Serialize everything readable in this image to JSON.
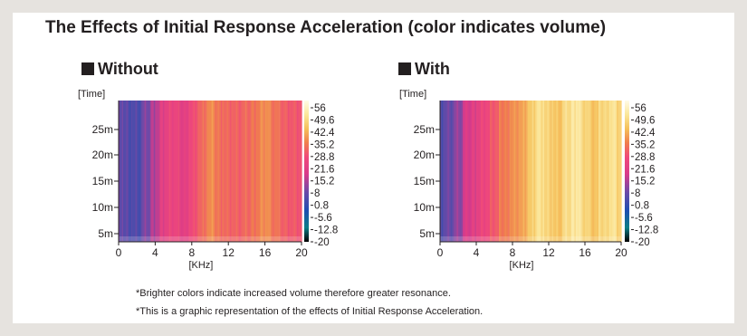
{
  "title": "The Effects of Initial Response Acceleration (color indicates volume)",
  "notes": [
    "*Brighter colors indicate increased volume therefore greater resonance.",
    "*This is a graphic representation of the effects of Initial Response Acceleration."
  ],
  "colors": {
    "page_bg": "#e6e3df",
    "panel_bg": "#ffffff",
    "text": "#231f20",
    "colormap": [
      "#000000",
      "#0b7d86",
      "#1e4fb0",
      "#6b4aa8",
      "#d93b8a",
      "#f0497a",
      "#f07e4e",
      "#f5c05a",
      "#fbe79a",
      "#fffbe8"
    ]
  },
  "chart_data": [
    {
      "type": "heatmap",
      "title": "Without",
      "ylabel": "[Time]",
      "xlabel": "[KHz]",
      "x_ticks": [
        0,
        4,
        8,
        12,
        16,
        20
      ],
      "y_ticks": [
        "5m",
        "10m",
        "15m",
        "20m",
        "25m"
      ],
      "xlim": [
        0,
        20
      ],
      "colorbar_labels": [
        "56",
        "49.6",
        "42.4",
        "35.2",
        "28.8",
        "21.6",
        "15.2",
        "8",
        "0.8",
        "-5.6",
        "-12.8",
        "-20"
      ],
      "freq_profile": [
        {
          "khz": 0,
          "volume": 6
        },
        {
          "khz": 1,
          "volume": 3
        },
        {
          "khz": 2,
          "volume": 2
        },
        {
          "khz": 3,
          "volume": 6
        },
        {
          "khz": 4,
          "volume": 12
        },
        {
          "khz": 5,
          "volume": 18
        },
        {
          "khz": 6,
          "volume": 20
        },
        {
          "khz": 7,
          "volume": 17
        },
        {
          "khz": 8,
          "volume": 22
        },
        {
          "khz": 9,
          "volume": 27
        },
        {
          "khz": 10,
          "volume": 32
        },
        {
          "khz": 11,
          "volume": 29
        },
        {
          "khz": 12,
          "volume": 27
        },
        {
          "khz": 13,
          "volume": 26
        },
        {
          "khz": 14,
          "volume": 27
        },
        {
          "khz": 15,
          "volume": 30
        },
        {
          "khz": 16,
          "volume": 33
        },
        {
          "khz": 17,
          "volume": 29
        },
        {
          "khz": 18,
          "volume": 26
        },
        {
          "khz": 19,
          "volume": 25
        },
        {
          "khz": 20,
          "volume": 24
        }
      ]
    },
    {
      "type": "heatmap",
      "title": "With",
      "ylabel": "[Time]",
      "xlabel": "[KHz]",
      "x_ticks": [
        0,
        4,
        8,
        12,
        16,
        20
      ],
      "y_ticks": [
        "5m",
        "10m",
        "15m",
        "20m",
        "25m"
      ],
      "xlim": [
        0,
        20
      ],
      "colorbar_labels": [
        "56",
        "49.6",
        "42.4",
        "35.2",
        "28.8",
        "21.6",
        "15.2",
        "8",
        "0.8",
        "-5.6",
        "-12.8",
        "-20"
      ],
      "freq_profile": [
        {
          "khz": 0,
          "volume": 4
        },
        {
          "khz": 1,
          "volume": 5
        },
        {
          "khz": 2,
          "volume": 8
        },
        {
          "khz": 3,
          "volume": 14
        },
        {
          "khz": 4,
          "volume": 18
        },
        {
          "khz": 5,
          "volume": 21
        },
        {
          "khz": 6,
          "volume": 25
        },
        {
          "khz": 7,
          "volume": 30
        },
        {
          "khz": 8,
          "volume": 33
        },
        {
          "khz": 9,
          "volume": 35
        },
        {
          "khz": 10,
          "volume": 41
        },
        {
          "khz": 11,
          "volume": 47
        },
        {
          "khz": 12,
          "volume": 43
        },
        {
          "khz": 13,
          "volume": 40
        },
        {
          "khz": 14,
          "volume": 45
        },
        {
          "khz": 15,
          "volume": 49
        },
        {
          "khz": 16,
          "volume": 44
        },
        {
          "khz": 17,
          "volume": 40
        },
        {
          "khz": 18,
          "volume": 44
        },
        {
          "khz": 19,
          "volume": 47
        },
        {
          "khz": 20,
          "volume": 43
        }
      ]
    }
  ]
}
